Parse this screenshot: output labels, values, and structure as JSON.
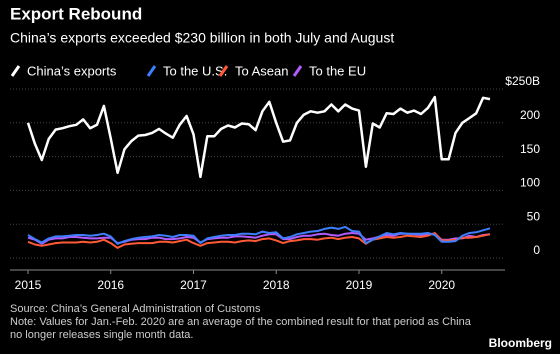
{
  "chart_data": {
    "type": "line",
    "title": "Export Rebound",
    "subtitle": "China’s exports exceeded $230 billion in both July and August",
    "categories": [
      "2015",
      null,
      null,
      null,
      null,
      null,
      null,
      null,
      null,
      null,
      null,
      null,
      "2016",
      null,
      null,
      null,
      null,
      null,
      null,
      null,
      null,
      null,
      null,
      null,
      "2017",
      null,
      null,
      null,
      null,
      null,
      null,
      null,
      null,
      null,
      null,
      null,
      "2018",
      null,
      null,
      null,
      null,
      null,
      null,
      null,
      null,
      null,
      null,
      null,
      "2019",
      null,
      null,
      null,
      null,
      null,
      null,
      null,
      null,
      null,
      null,
      null,
      "2020",
      null,
      null,
      null,
      null,
      null,
      null,
      null
    ],
    "series": [
      {
        "name": "China’s exports",
        "color": "#ffffff",
        "values": [
          200,
          169,
          145,
          176,
          190,
          192,
          195,
          197,
          205,
          192,
          197,
          225,
          177,
          126,
          161,
          173,
          181,
          182,
          185,
          191,
          184,
          178,
          197,
          210,
          183,
          120,
          180,
          180,
          191,
          196,
          193,
          199,
          198,
          189,
          217,
          231,
          200,
          172,
          174,
          200,
          212,
          217,
          215,
          217,
          227,
          217,
          227,
          221,
          218,
          135,
          199,
          193,
          214,
          213,
          221,
          215,
          218,
          213,
          222,
          238,
          146,
          146,
          185,
          200,
          207,
          214,
          237,
          235
        ]
      },
      {
        "name": "To the U.S.",
        "color": "#3d7fff",
        "values": [
          34,
          28,
          23,
          29,
          32,
          32,
          33,
          34,
          34,
          33,
          34,
          36,
          32,
          21,
          25,
          28,
          30,
          31,
          32,
          34,
          33,
          31,
          34,
          34,
          33,
          22,
          29,
          31,
          33,
          34,
          34,
          36,
          36,
          35,
          39,
          37,
          38,
          29,
          31,
          35,
          37,
          39,
          40,
          43,
          45,
          43,
          46,
          40,
          39,
          22,
          27,
          32,
          37,
          35,
          37,
          36,
          36,
          36,
          37,
          34,
          24,
          24,
          25,
          33,
          37,
          38,
          41,
          44
        ]
      },
      {
        "name": "To Asean",
        "color": "#ff5a36",
        "values": [
          24,
          20,
          18,
          20,
          22,
          23,
          23,
          23,
          24,
          23,
          24,
          27,
          22,
          15,
          20,
          21,
          22,
          22,
          22,
          24,
          24,
          23,
          25,
          27,
          22,
          18,
          22,
          23,
          24,
          24,
          23,
          25,
          26,
          25,
          28,
          29,
          26,
          22,
          25,
          26,
          28,
          28,
          27,
          29,
          30,
          28,
          30,
          31,
          29,
          21,
          27,
          29,
          31,
          30,
          31,
          33,
          32,
          31,
          33,
          37,
          26,
          26,
          27,
          30,
          30,
          31,
          33,
          35
        ]
      },
      {
        "name": "To the EU",
        "color": "#b15cff",
        "values": [
          30,
          27,
          21,
          27,
          29,
          29,
          31,
          31,
          30,
          29,
          29,
          30,
          30,
          22,
          24,
          27,
          28,
          28,
          30,
          30,
          28,
          28,
          29,
          31,
          30,
          23,
          28,
          29,
          30,
          30,
          32,
          32,
          31,
          30,
          33,
          35,
          35,
          28,
          28,
          31,
          33,
          33,
          35,
          36,
          34,
          33,
          36,
          37,
          36,
          27,
          29,
          32,
          34,
          33,
          36,
          36,
          35,
          34,
          35,
          36,
          27,
          27,
          29,
          29,
          33,
          31,
          34,
          35
        ]
      }
    ],
    "ylim": [
      0,
      250
    ],
    "yticks": [
      0,
      50,
      100,
      150,
      200,
      {
        "value": 250,
        "label": "$250B"
      }
    ],
    "grid": true,
    "source": "Source: China’s General Administration of Customs",
    "note": "Note: Values for Jan.-Feb. 2020 are an average of the combined result for that period as China no longer releases single month data.",
    "brand": "Bloomberg"
  }
}
